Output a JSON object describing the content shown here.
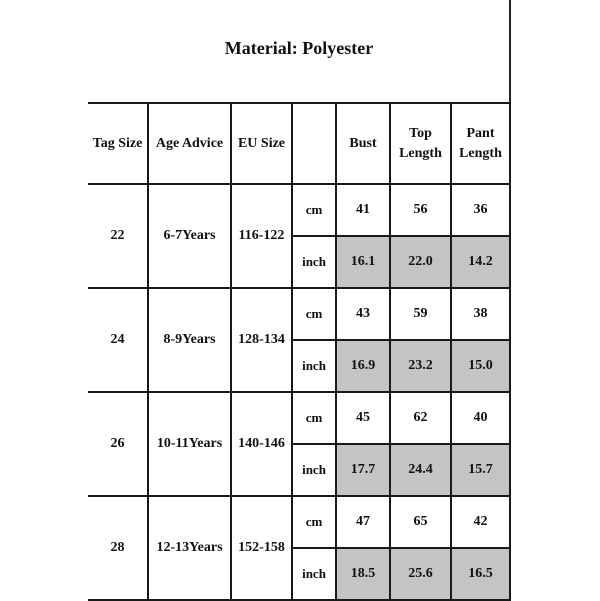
{
  "title": "Material: Polyester",
  "headers": [
    "Tag Size",
    "Age Advice",
    "EU Size",
    "",
    "Bust",
    "Top Length",
    "Pant Length"
  ],
  "units": {
    "cm": "cm",
    "inch": "inch"
  },
  "highlight_color": "#c4c4c4",
  "rows": [
    {
      "tag": "22",
      "age": "6-7Years",
      "eu": "116-122",
      "cm": [
        "41",
        "56",
        "36"
      ],
      "inch": [
        "16.1",
        "22.0",
        "14.2"
      ]
    },
    {
      "tag": "24",
      "age": "8-9Years",
      "eu": "128-134",
      "cm": [
        "43",
        "59",
        "38"
      ],
      "inch": [
        "16.9",
        "23.2",
        "15.0"
      ]
    },
    {
      "tag": "26",
      "age": "10-11Years",
      "eu": "140-146",
      "cm": [
        "45",
        "62",
        "40"
      ],
      "inch": [
        "17.7",
        "24.4",
        "15.7"
      ]
    },
    {
      "tag": "28",
      "age": "12-13Years",
      "eu": "152-158",
      "cm": [
        "47",
        "65",
        "42"
      ],
      "inch": [
        "18.5",
        "25.6",
        "16.5"
      ]
    }
  ]
}
